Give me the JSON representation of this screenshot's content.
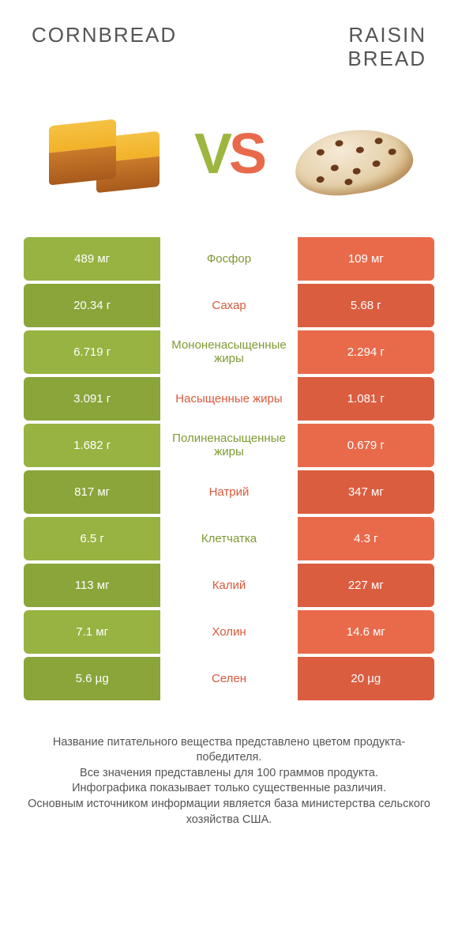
{
  "colors": {
    "green": "#97b342",
    "green_dark": "#8aa53a",
    "red": "#e86a4b",
    "red_dark": "#db5d40",
    "label_green": "#7f9a33",
    "label_red": "#d85a3c",
    "bg": "#ffffff",
    "title_text": "#555555"
  },
  "header": {
    "left": "CORNBREAD",
    "right": "RAISIN\nBREAD",
    "vs_v": "V",
    "vs_s": "S"
  },
  "rows": [
    {
      "left": "489 мг",
      "label": "Фосфор",
      "right": "109 мг",
      "winner": "left"
    },
    {
      "left": "20.34 г",
      "label": "Сахар",
      "right": "5.68 г",
      "winner": "right"
    },
    {
      "left": "6.719 г",
      "label": "Мононенасыщенные жиры",
      "right": "2.294 г",
      "winner": "left"
    },
    {
      "left": "3.091 г",
      "label": "Насыщенные жиры",
      "right": "1.081 г",
      "winner": "right"
    },
    {
      "left": "1.682 г",
      "label": "Полиненасыщенные жиры",
      "right": "0.679 г",
      "winner": "left"
    },
    {
      "left": "817 мг",
      "label": "Натрий",
      "right": "347 мг",
      "winner": "right"
    },
    {
      "left": "6.5 г",
      "label": "Клетчатка",
      "right": "4.3 г",
      "winner": "left"
    },
    {
      "left": "113 мг",
      "label": "Калий",
      "right": "227 мг",
      "winner": "right"
    },
    {
      "left": "7.1 мг",
      "label": "Холин",
      "right": "14.6 мг",
      "winner": "right"
    },
    {
      "left": "5.6 µg",
      "label": "Селен",
      "right": "20 µg",
      "winner": "right"
    }
  ],
  "footer": {
    "l1": "Название питательного вещества представлено цветом продукта-победителя.",
    "l2": "Все значения представлены для 100 граммов продукта.",
    "l3": "Инфографика показывает только существенные различия.",
    "l4": "Основным источником информации является база министерства сельского хозяйства США."
  },
  "raisin_positions": [
    {
      "l": 30,
      "t": 18
    },
    {
      "l": 55,
      "t": 10
    },
    {
      "l": 80,
      "t": 22
    },
    {
      "l": 105,
      "t": 14
    },
    {
      "l": 45,
      "t": 40
    },
    {
      "l": 72,
      "t": 48
    },
    {
      "l": 98,
      "t": 42
    },
    {
      "l": 120,
      "t": 30
    },
    {
      "l": 25,
      "t": 52
    },
    {
      "l": 60,
      "t": 60
    }
  ]
}
